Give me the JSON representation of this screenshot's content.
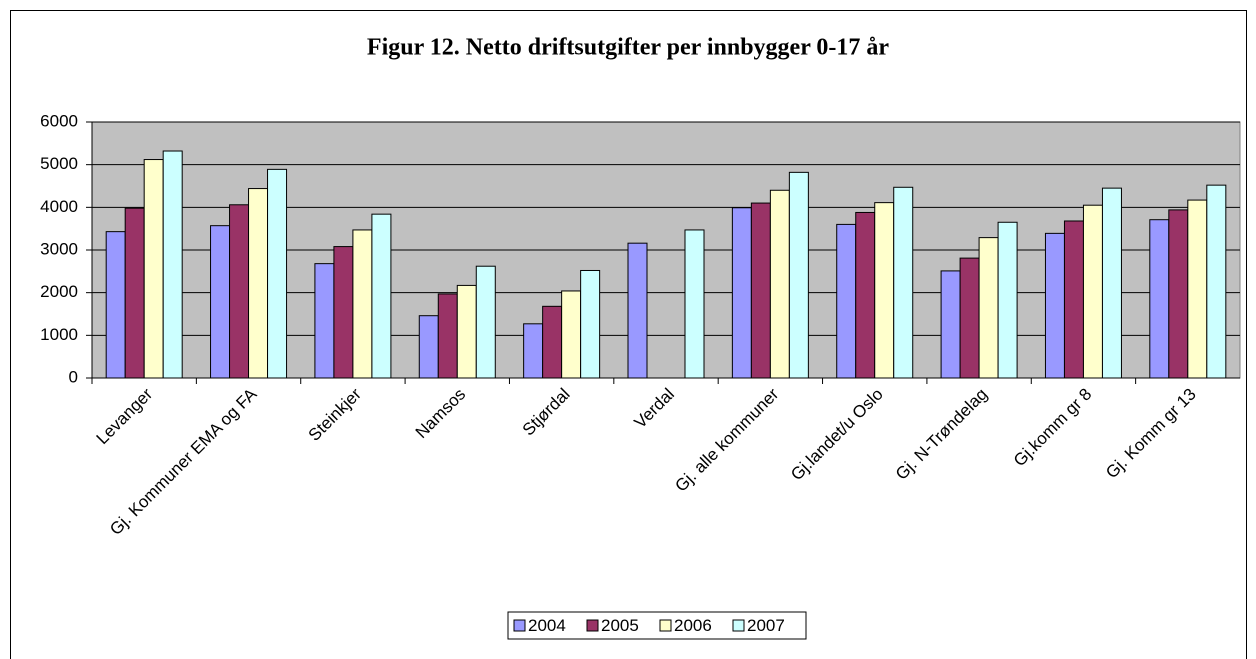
{
  "chart_data": {
    "type": "bar",
    "title": "Figur 12. Netto driftsutgifter per innbygger 0-17 år",
    "categories": [
      "Levanger",
      "Gj. Kommuner EMA og FA",
      "Steinkjer",
      "Namsos",
      "Stjørdal",
      "Verdal",
      "Gj. alle kommuner",
      "Gj.landet/u Oslo",
      "Gj. N-Trøndelag",
      "Gj.komm gr 8",
      "Gj. Komm gr 13"
    ],
    "series": [
      {
        "name": "2004",
        "color": "#9999ff",
        "values": [
          3430,
          3570,
          2680,
          1460,
          1270,
          3160,
          3990,
          3600,
          2510,
          3390,
          3710
        ]
      },
      {
        "name": "2005",
        "color": "#993366",
        "values": [
          3980,
          4060,
          3080,
          1970,
          1680,
          null,
          4100,
          3880,
          2810,
          3680,
          3940
        ]
      },
      {
        "name": "2006",
        "color": "#ffffcc",
        "values": [
          5120,
          4440,
          3470,
          2170,
          2040,
          null,
          4400,
          4110,
          3290,
          4050,
          4170
        ]
      },
      {
        "name": "2007",
        "color": "#ccffff",
        "values": [
          5320,
          4890,
          3840,
          2620,
          2520,
          3470,
          4820,
          4470,
          3650,
          4450,
          4520
        ]
      }
    ],
    "ylim": [
      0,
      6000
    ],
    "yticks": [
      0,
      1000,
      2000,
      3000,
      4000,
      5000,
      6000
    ],
    "grid": true,
    "plot_background": "#c0c0c0",
    "legend": "bottom"
  }
}
